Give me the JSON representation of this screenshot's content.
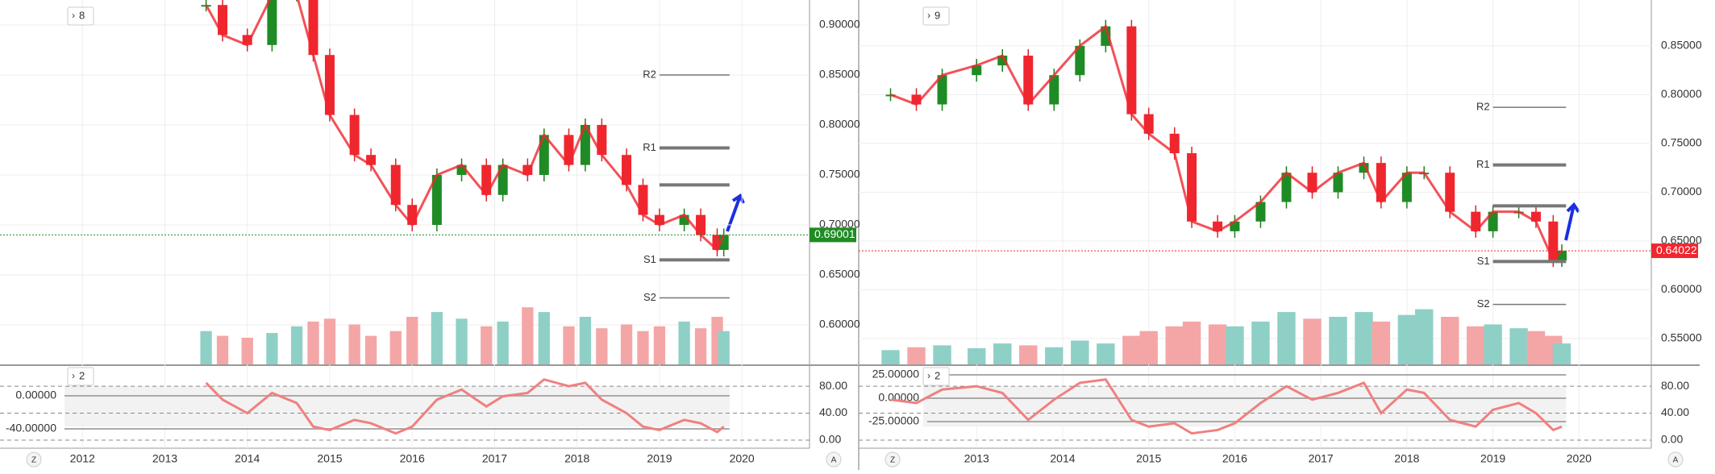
{
  "panels": [
    {
      "badge": "8",
      "osc_badge": "2",
      "price_axis": {
        "lim": [
          0.925,
          0.5605
        ],
        "ticks": [
          {
            "value": 0.9,
            "label": "0.90000"
          },
          {
            "value": 0.85,
            "label": "0.85000"
          },
          {
            "value": 0.8,
            "label": "0.80000"
          },
          {
            "value": 0.75,
            "label": "0.75000"
          },
          {
            "value": 0.7,
            "label": "0.70000"
          },
          {
            "value": 0.65,
            "label": "0.65000"
          },
          {
            "value": 0.6,
            "label": "0.60000"
          }
        ]
      },
      "time_axis": {
        "lim": [
          2011.0,
          2020.82
        ],
        "ticks": [
          2012,
          2013,
          2014,
          2015,
          2016,
          2017,
          2018,
          2019,
          2020
        ]
      },
      "x": [
        2013.5,
        2013.7,
        2014.0,
        2014.3,
        2014.6,
        2014.8,
        2015.0,
        2015.3,
        2015.5,
        2015.8,
        2016.0,
        2016.3,
        2016.6,
        2016.9,
        2017.1,
        2017.4,
        2017.6,
        2017.9,
        2018.1,
        2018.3,
        2018.6,
        2018.8,
        2019.0,
        2019.3,
        2019.5,
        2019.7,
        2019.78
      ],
      "closes": [
        0.92,
        0.89,
        0.88,
        0.93,
        0.93,
        0.87,
        0.81,
        0.77,
        0.76,
        0.72,
        0.7,
        0.75,
        0.76,
        0.73,
        0.76,
        0.75,
        0.79,
        0.76,
        0.8,
        0.77,
        0.74,
        0.71,
        0.7,
        0.71,
        0.69,
        0.675,
        0.69
      ],
      "volume_lim": [
        0,
        100
      ],
      "volumes": [
        35,
        30,
        28,
        33,
        40,
        45,
        48,
        42,
        30,
        35,
        50,
        55,
        48,
        40,
        45,
        60,
        55,
        40,
        50,
        38,
        42,
        35,
        40,
        45,
        38,
        50,
        35
      ],
      "osc_lim": [
        -12,
        110
      ],
      "osc_ticks": [
        {
          "value": 80,
          "label": "80.00"
        },
        {
          "value": 40,
          "label": "40.00"
        },
        {
          "value": 0,
          "label": "0.00"
        }
      ],
      "osc": [
        85,
        60,
        40,
        70,
        55,
        20,
        15,
        30,
        25,
        10,
        20,
        60,
        75,
        50,
        65,
        70,
        90,
        80,
        85,
        60,
        40,
        20,
        15,
        30,
        25,
        12,
        20
      ],
      "mom_lim": [
        36,
        -63.4
      ],
      "mom_ticks": [
        {
          "value": 0,
          "label": "0.00000"
        },
        {
          "value": -40,
          "label": "-40.00000"
        }
      ],
      "pivot_range": [
        2019.0,
        2019.85
      ],
      "levels": [
        {
          "label": "R2",
          "value": 0.85
        },
        {
          "label": "R1",
          "value": 0.777
        },
        {
          "value": 0.74
        },
        {
          "label": "S1",
          "value": 0.665
        },
        {
          "label": "S2",
          "value": 0.627
        }
      ],
      "last_price": {
        "value": 0.69,
        "label": "0.69001",
        "color": "#1f8b24"
      }
    },
    {
      "badge": "9",
      "osc_badge": "2",
      "price_axis": {
        "lim": [
          0.897,
          0.5236
        ],
        "ticks": [
          {
            "value": 0.85,
            "label": "0.85000"
          },
          {
            "value": 0.8,
            "label": "0.80000"
          },
          {
            "value": 0.75,
            "label": "0.75000"
          },
          {
            "value": 0.7,
            "label": "0.70000"
          },
          {
            "value": 0.65,
            "label": "0.65000"
          },
          {
            "value": 0.6,
            "label": "0.60000"
          },
          {
            "value": 0.55,
            "label": "0.55000"
          }
        ]
      },
      "time_axis": {
        "lim": [
          2011.63,
          2020.84
        ],
        "ticks": [
          2013,
          2014,
          2015,
          2016,
          2017,
          2018,
          2019,
          2020
        ]
      },
      "x": [
        2012.0,
        2012.3,
        2012.6,
        2013.0,
        2013.3,
        2013.6,
        2013.9,
        2014.2,
        2014.5,
        2014.8,
        2015.0,
        2015.3,
        2015.5,
        2015.8,
        2016.0,
        2016.3,
        2016.6,
        2016.9,
        2017.2,
        2017.5,
        2017.7,
        2018.0,
        2018.2,
        2018.5,
        2018.8,
        2019.0,
        2019.3,
        2019.5,
        2019.7,
        2019.8
      ],
      "closes": [
        0.8,
        0.79,
        0.82,
        0.83,
        0.84,
        0.79,
        0.82,
        0.85,
        0.87,
        0.78,
        0.76,
        0.74,
        0.67,
        0.66,
        0.67,
        0.69,
        0.72,
        0.7,
        0.72,
        0.73,
        0.69,
        0.72,
        0.72,
        0.68,
        0.66,
        0.68,
        0.68,
        0.67,
        0.63,
        0.64
      ],
      "volume_lim": [
        0,
        100
      ],
      "volumes": [
        15,
        18,
        20,
        17,
        22,
        20,
        18,
        25,
        22,
        30,
        35,
        40,
        45,
        42,
        40,
        45,
        55,
        48,
        50,
        55,
        45,
        52,
        58,
        50,
        40,
        42,
        38,
        35,
        30,
        22
      ],
      "osc_lim": [
        -12,
        110
      ],
      "osc_ticks": [
        {
          "value": 80,
          "label": "80.00"
        },
        {
          "value": 40,
          "label": "40.00"
        },
        {
          "value": 0,
          "label": "0.00"
        }
      ],
      "osc": [
        60,
        55,
        75,
        80,
        70,
        30,
        60,
        85,
        90,
        30,
        20,
        25,
        10,
        15,
        25,
        55,
        80,
        60,
        70,
        85,
        40,
        75,
        70,
        30,
        20,
        45,
        55,
        40,
        15,
        20
      ],
      "mom_lim": [
        34.5,
        -53.4
      ],
      "mom_ticks": [
        {
          "value": 25,
          "label": "25.00000"
        },
        {
          "value": 0,
          "label": "0.00000"
        },
        {
          "value": -25,
          "label": "-25.00000"
        }
      ],
      "pivot_range": [
        2019.0,
        2019.85
      ],
      "levels": [
        {
          "label": "R2",
          "value": 0.787
        },
        {
          "label": "R1",
          "value": 0.728
        },
        {
          "value": 0.686
        },
        {
          "label": "S1",
          "value": 0.629
        },
        {
          "label": "S2",
          "value": 0.585
        }
      ],
      "last_price": {
        "value": 0.64,
        "label": "0.64022",
        "color": "#f0262e"
      }
    }
  ],
  "buttons": [
    "Z",
    "A"
  ]
}
